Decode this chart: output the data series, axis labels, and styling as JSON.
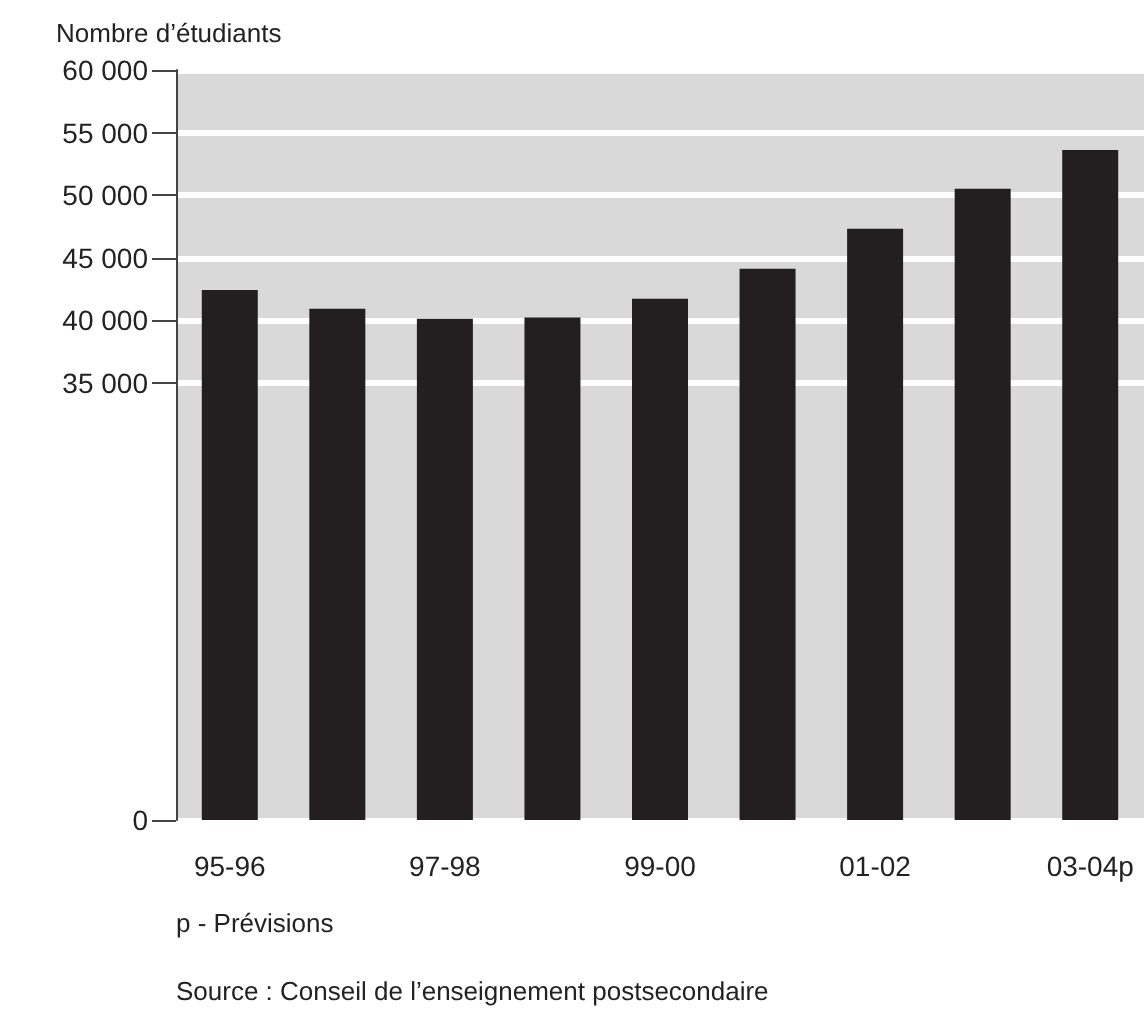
{
  "chart_data": {
    "type": "bar",
    "ylabel": "Nombre d’étudiants",
    "categories": [
      "95-96",
      null,
      "97-98",
      null,
      "99-00",
      null,
      "01-02",
      null,
      "03-04p"
    ],
    "values": [
      42400,
      40900,
      40100,
      40200,
      41700,
      44100,
      47300,
      50500,
      53600
    ],
    "color": "#231f20",
    "ylim": [
      0,
      60000
    ],
    "yticks": [
      0,
      {
        "value": 35000,
        "label": "35 000"
      },
      {
        "value": 40000,
        "label": "40 000"
      },
      {
        "value": 45000,
        "label": "45 000"
      },
      {
        "value": 50000,
        "label": "50 000"
      },
      {
        "value": 55000,
        "label": "55 000"
      },
      {
        "value": 60000,
        "label": "60 000"
      }
    ],
    "grid": "y",
    "annotations": [
      "p - Prévisions",
      "Source : Conseil de l’enseignement postsecondaire"
    ]
  }
}
